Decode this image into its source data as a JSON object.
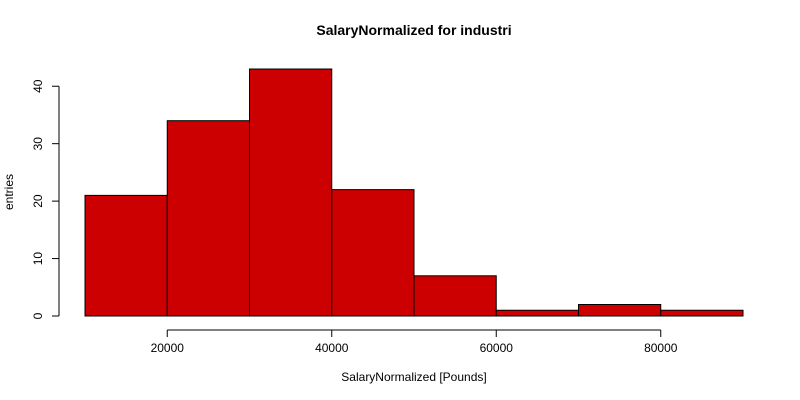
{
  "chart_data": {
    "type": "bar",
    "subtype": "histogram",
    "title": "SalaryNormalized for industri",
    "xlabel": "SalaryNormalized [Pounds]",
    "ylabel": "entries",
    "bins": [
      {
        "from": 10000,
        "to": 20000,
        "count": 21
      },
      {
        "from": 20000,
        "to": 30000,
        "count": 34
      },
      {
        "from": 30000,
        "to": 40000,
        "count": 43
      },
      {
        "from": 40000,
        "to": 50000,
        "count": 22
      },
      {
        "from": 50000,
        "to": 60000,
        "count": 7
      },
      {
        "from": 60000,
        "to": 70000,
        "count": 1
      },
      {
        "from": 70000,
        "to": 80000,
        "count": 2
      },
      {
        "from": 80000,
        "to": 90000,
        "count": 1
      }
    ],
    "xlim": [
      10000,
      90000
    ],
    "ylim": [
      0,
      43
    ],
    "x_ticks": [
      20000,
      40000,
      60000,
      80000
    ],
    "y_ticks": [
      0,
      10,
      20,
      30,
      40
    ],
    "bar_color": "#cc0000",
    "grid": false
  }
}
